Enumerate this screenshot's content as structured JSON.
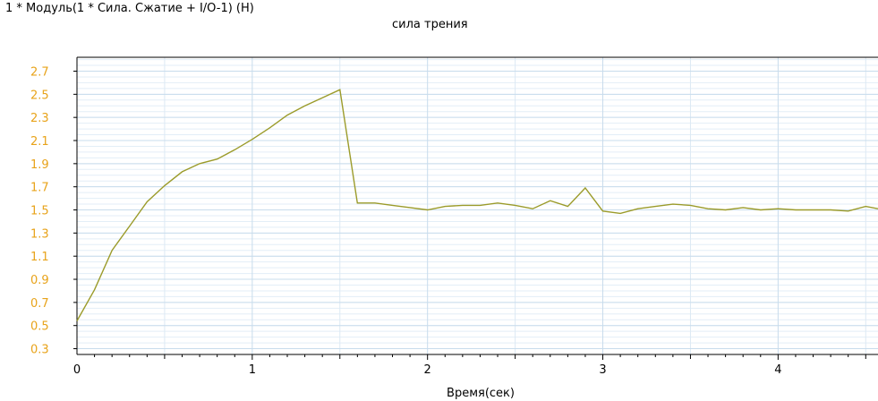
{
  "chart_data": {
    "type": "line",
    "series_label": "1 * Модуль(1 * Сила. Сжатие + I/O-1) (Н)",
    "title": "сила трения",
    "xlabel": "Время(сек)",
    "ylabel": "",
    "xlim": [
      0,
      4.57
    ],
    "ylim": [
      0.25,
      2.82
    ],
    "x_ticks": [
      0,
      1,
      2,
      3,
      4
    ],
    "y_ticks": [
      0.3,
      0.5,
      0.7,
      0.9,
      1.1,
      1.3,
      1.5,
      1.7,
      1.9,
      2.1,
      2.3,
      2.5,
      2.7
    ],
    "y_tick_labels": [
      "0.3",
      "0.5",
      "0.7",
      "0.9",
      "1.1",
      "1.3",
      "1.5",
      "1.7",
      "1.9",
      "2.1",
      "2.3",
      "2.5",
      "2.7"
    ],
    "grid": true,
    "colors": {
      "line": "#9b9b2a",
      "grid": "#c8dcec",
      "y_tick_labels": "#e8a31a"
    },
    "series": [
      {
        "x": [
          0,
          0.1,
          0.2,
          0.3,
          0.4,
          0.5,
          0.6,
          0.7,
          0.8,
          0.9,
          1.0,
          1.1,
          1.2,
          1.3,
          1.4,
          1.5,
          1.6,
          1.7,
          1.8,
          1.9,
          2.0,
          2.1,
          2.2,
          2.3,
          2.4,
          2.5,
          2.6,
          2.7,
          2.8,
          2.9,
          3.0,
          3.1,
          3.2,
          3.3,
          3.4,
          3.5,
          3.6,
          3.7,
          3.8,
          3.9,
          4.0,
          4.1,
          4.2,
          4.3,
          4.4,
          4.5,
          4.57
        ],
        "values": [
          0.54,
          0.81,
          1.15,
          1.36,
          1.57,
          1.71,
          1.83,
          1.9,
          1.94,
          2.02,
          2.11,
          2.21,
          2.32,
          2.4,
          2.47,
          2.54,
          1.56,
          1.56,
          1.54,
          1.52,
          1.5,
          1.53,
          1.54,
          1.54,
          1.56,
          1.54,
          1.51,
          1.58,
          1.53,
          1.69,
          1.49,
          1.47,
          1.51,
          1.53,
          1.55,
          1.54,
          1.51,
          1.5,
          1.52,
          1.5,
          1.51,
          1.5,
          1.5,
          1.5,
          1.49,
          1.53,
          1.51
        ]
      }
    ]
  }
}
